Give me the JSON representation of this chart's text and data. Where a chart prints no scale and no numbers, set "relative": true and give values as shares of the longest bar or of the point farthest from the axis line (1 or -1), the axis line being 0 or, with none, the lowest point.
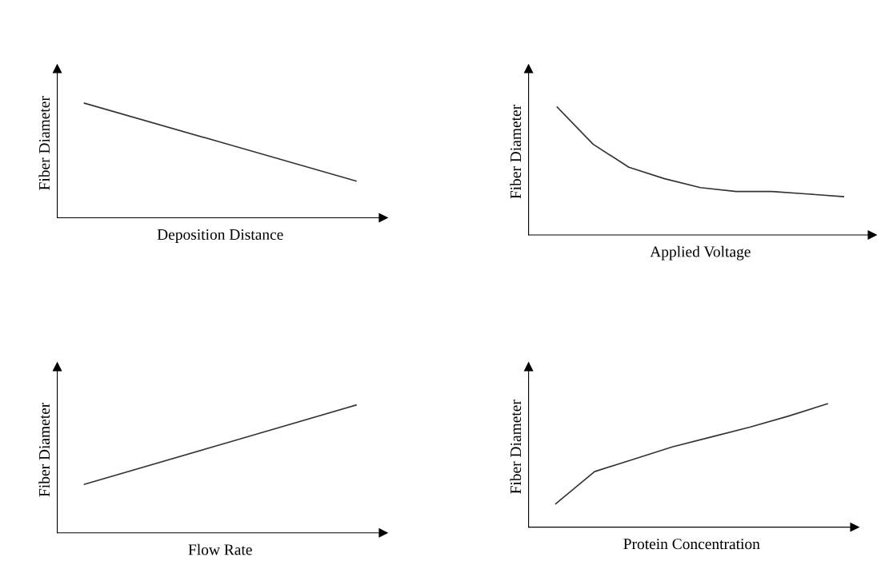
{
  "chart_data": [
    {
      "type": "line",
      "relative": true,
      "xlabel": "Deposition Distance",
      "ylabel": "Fiber Diameter",
      "categories": [
        null,
        null,
        null
      ],
      "series": [
        {
          "color": "#333333",
          "values": [
            1,
            0.66,
            0.32
          ]
        }
      ]
    },
    {
      "type": "line",
      "relative": true,
      "xlabel": "Applied Voltage",
      "ylabel": "Fiber Diameter",
      "categories": [
        null,
        null,
        null,
        null,
        null,
        null,
        null,
        null,
        null
      ],
      "series": [
        {
          "color": "#333333",
          "values": [
            1,
            0.71,
            0.53,
            0.44,
            0.37,
            0.34,
            0.34,
            0.32,
            0.3
          ]
        }
      ]
    },
    {
      "type": "line",
      "relative": true,
      "xlabel": "Flow Rate",
      "ylabel": "Fiber Diameter",
      "categories": [
        null,
        null,
        null
      ],
      "series": [
        {
          "color": "#333333",
          "values": [
            0.38,
            0.69,
            1
          ]
        }
      ]
    },
    {
      "type": "line",
      "relative": true,
      "xlabel": "Protein Concentration",
      "ylabel": "Fiber Diameter",
      "categories": [
        null,
        null,
        null,
        null,
        null,
        null,
        null,
        null
      ],
      "series": [
        {
          "color": "#333333",
          "values": [
            0.19,
            0.45,
            0.55,
            0.65,
            0.73,
            0.81,
            0.9,
            1
          ]
        }
      ]
    }
  ]
}
